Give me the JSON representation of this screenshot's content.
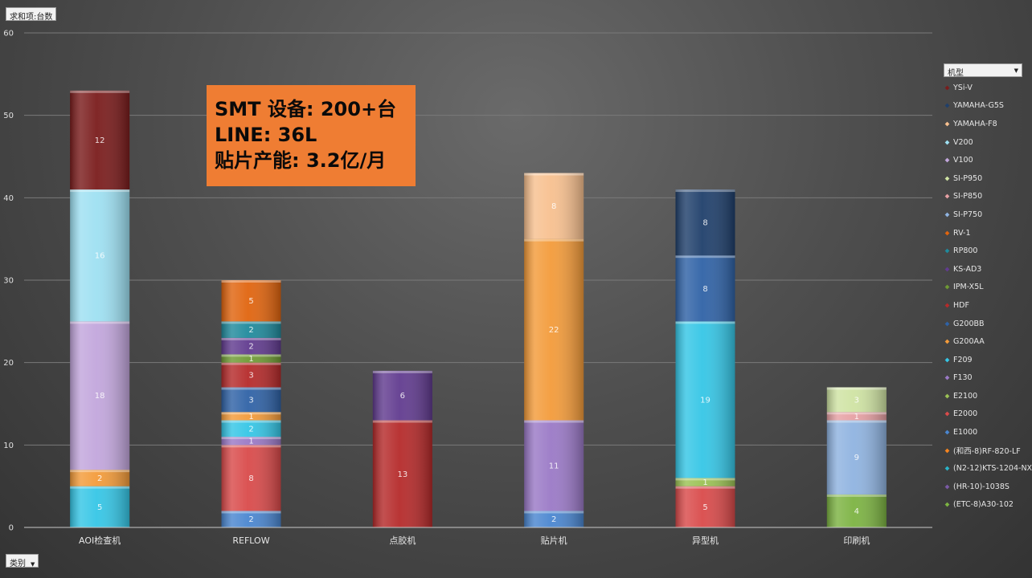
{
  "pivot": {
    "sum_label": "求和项:台数",
    "category_label": "类别",
    "legend_label": "机型",
    "dropdown_glyph": "▼"
  },
  "callout": {
    "lines": [
      "SMT 设备: 200+台",
      "LINE: 36L",
      "贴片产能: 3.2亿/月"
    ]
  },
  "chart_data": {
    "type": "bar",
    "stacked": true,
    "ylim": [
      0,
      60
    ],
    "yticks": [
      0,
      10,
      20,
      30,
      40,
      50,
      60
    ],
    "grid": true,
    "legend_position": "right",
    "categories": [
      "AOI检查机",
      "REFLOW",
      "点胶机",
      "贴片机",
      "异型机",
      "印刷机"
    ],
    "series": [
      {
        "name": "(ETC-8)A30-102",
        "color": "#7cb342",
        "values": [
          0,
          0,
          0,
          0,
          0,
          4
        ]
      },
      {
        "name": "(HR-10)-1038S",
        "color": "#7b5aa6",
        "values": [
          0,
          0,
          0,
          0,
          0,
          0
        ]
      },
      {
        "name": "(N2-12)KTS-1204-NX",
        "color": "#2ab3c8",
        "values": [
          0,
          0,
          0,
          0,
          0,
          0
        ]
      },
      {
        "name": "(和西-8)RF-820-LF",
        "color": "#f5841f",
        "values": [
          0,
          0,
          0,
          0,
          0,
          0
        ]
      },
      {
        "name": "E1000",
        "color": "#4a86d0",
        "values": [
          0,
          2,
          0,
          2,
          0,
          0
        ]
      },
      {
        "name": "E2000",
        "color": "#d94a4a",
        "values": [
          0,
          8,
          0,
          0,
          5,
          0
        ]
      },
      {
        "name": "E2100",
        "color": "#9bc254",
        "values": [
          0,
          0,
          0,
          0,
          1,
          0
        ]
      },
      {
        "name": "F130",
        "color": "#9a79c6",
        "values": [
          0,
          1,
          0,
          11,
          0,
          0
        ]
      },
      {
        "name": "F209",
        "color": "#35c6e6",
        "values": [
          5,
          2,
          0,
          0,
          19,
          0
        ]
      },
      {
        "name": "G200AA",
        "color": "#f39b3a",
        "values": [
          2,
          1,
          0,
          22,
          0,
          0
        ]
      },
      {
        "name": "G200BB",
        "color": "#2f62a6",
        "values": [
          0,
          3,
          0,
          0,
          8,
          0
        ]
      },
      {
        "name": "HDF",
        "color": "#b52a2a",
        "values": [
          0,
          3,
          13,
          0,
          0,
          0
        ]
      },
      {
        "name": "IPM-X5L",
        "color": "#6f9a34",
        "values": [
          0,
          1,
          0,
          0,
          0,
          0
        ]
      },
      {
        "name": "KS-AD3",
        "color": "#613b8f",
        "values": [
          0,
          2,
          6,
          0,
          0,
          0
        ]
      },
      {
        "name": "RP800",
        "color": "#1f8a9c",
        "values": [
          0,
          2,
          0,
          0,
          0,
          0
        ]
      },
      {
        "name": "RV-1",
        "color": "#e0640e",
        "values": [
          0,
          5,
          0,
          0,
          0,
          0
        ]
      },
      {
        "name": "SI-P750",
        "color": "#8fb3e0",
        "values": [
          0,
          0,
          0,
          0,
          0,
          9
        ]
      },
      {
        "name": "SI-P850",
        "color": "#e6a0a3",
        "values": [
          0,
          0,
          0,
          0,
          0,
          1
        ]
      },
      {
        "name": "SI-P950",
        "color": "#cfe3a3",
        "values": [
          0,
          0,
          0,
          0,
          0,
          3
        ]
      },
      {
        "name": "V100",
        "color": "#c2a6dc",
        "values": [
          18,
          0,
          0,
          0,
          0,
          0
        ]
      },
      {
        "name": "V200",
        "color": "#9ee0f2",
        "values": [
          16,
          0,
          0,
          0,
          0,
          0
        ]
      },
      {
        "name": "YAMAHA-F8",
        "color": "#f7c08f",
        "values": [
          0,
          0,
          0,
          8,
          0,
          0
        ]
      },
      {
        "name": "YAMAHA-G5S",
        "color": "#1f3f6b",
        "values": [
          0,
          0,
          0,
          0,
          8,
          0
        ]
      },
      {
        "name": "YSi-V",
        "color": "#7a1c1c",
        "values": [
          12,
          0,
          0,
          0,
          0,
          0
        ]
      }
    ]
  }
}
